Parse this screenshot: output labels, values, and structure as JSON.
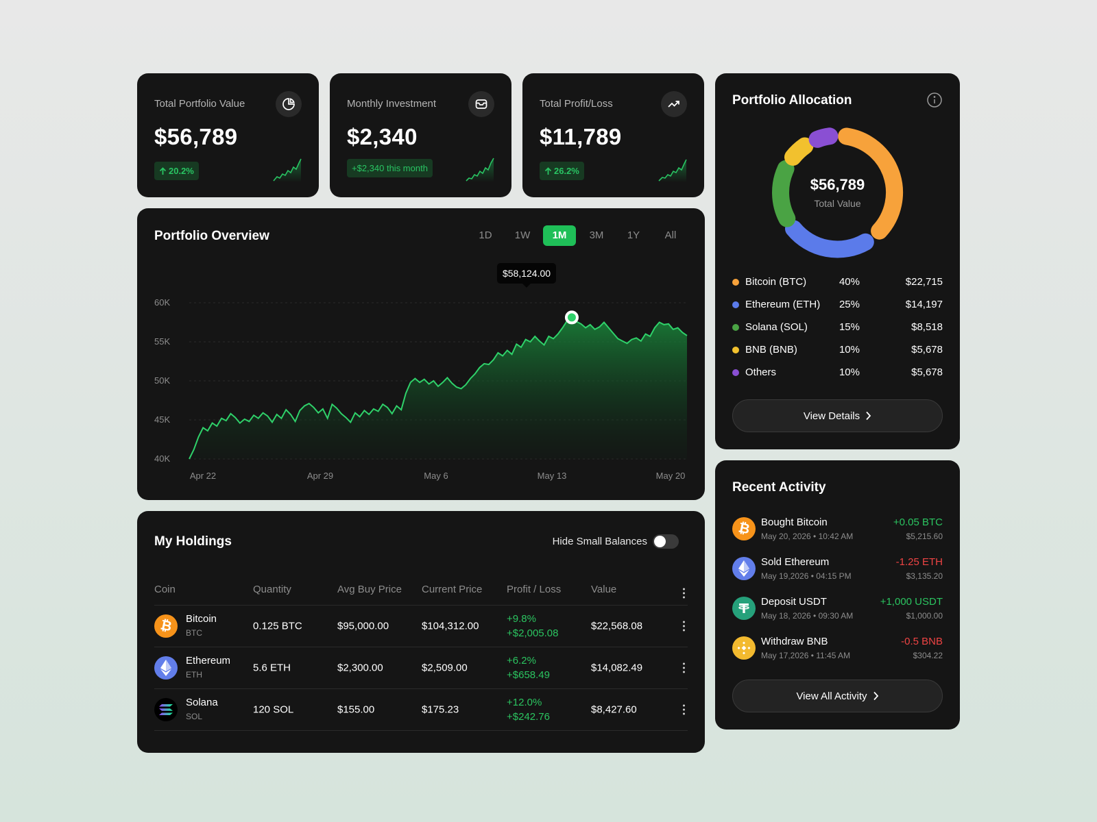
{
  "stats": [
    {
      "label": "Total Portfolio Value",
      "value": "$56,789",
      "badge": "20.2%",
      "icon": "pie-chart-icon"
    },
    {
      "label": "Monthly Investment",
      "value": "$2,340",
      "badge": "+$2,340 this month",
      "icon": "wallet-icon"
    },
    {
      "label": "Total Profit/Loss",
      "value": "$11,789",
      "badge": "26.2%",
      "icon": "trending-up-icon"
    }
  ],
  "overview": {
    "title": "Portfolio Overview",
    "ranges": [
      "1D",
      "1W",
      "1M",
      "3M",
      "1Y",
      "All"
    ],
    "active_range": "1M",
    "tooltip": "$58,124.00"
  },
  "chart_data": {
    "type": "area",
    "x_ticks": [
      "Apr 22",
      "Apr 29",
      "May 6",
      "May 13",
      "May 20"
    ],
    "y_ticks": [
      "60K",
      "55K",
      "50K",
      "45K",
      "40K"
    ],
    "ylim": [
      40000,
      60000
    ],
    "values": [
      40000,
      41200,
      42800,
      44000,
      43600,
      44600,
      44200,
      45200,
      44900,
      45800,
      45300,
      44600,
      45100,
      44800,
      45600,
      45200,
      45900,
      45500,
      44700,
      45700,
      45200,
      46300,
      45700,
      44800,
      46200,
      46800,
      47100,
      46600,
      45900,
      46400,
      45200,
      47000,
      46500,
      45800,
      45300,
      44700,
      45900,
      45400,
      46200,
      45700,
      46400,
      46100,
      47000,
      46600,
      45800,
      46800,
      46300,
      48400,
      49800,
      50300,
      49800,
      50200,
      49600,
      50000,
      49300,
      49800,
      50400,
      49700,
      49200,
      49000,
      49500,
      50300,
      50900,
      51700,
      52200,
      52100,
      52700,
      53600,
      53200,
      53900,
      53400,
      54700,
      54300,
      55300,
      55000,
      55700,
      55100,
      54600,
      55700,
      55400,
      56000,
      56800,
      57700,
      58124,
      57600,
      57300,
      56800,
      57200,
      56600,
      56900,
      57500,
      56800,
      56100,
      55400,
      55100,
      54800,
      55300,
      55500,
      55100,
      56000,
      55700,
      56800,
      57500,
      57200,
      57300,
      56600,
      56800,
      56200,
      55800
    ]
  },
  "holdings": {
    "title": "My Holdings",
    "toggle_label": "Hide Small Balances",
    "headers": [
      "Coin",
      "Quantity",
      "Avg Buy Price",
      "Current Price",
      "Profit / Loss",
      "Value"
    ],
    "rows": [
      {
        "name": "Bitcoin",
        "symbol": "BTC",
        "qty": "0.125 BTC",
        "avg": "$95,000.00",
        "current": "$104,312.00",
        "pl_pct": "+9.8%",
        "pl_usd": "+$2,005.08",
        "value": "$22,568.08",
        "color": "#f7931a"
      },
      {
        "name": "Ethereum",
        "symbol": "ETH",
        "qty": "5.6 ETH",
        "avg": "$2,300.00",
        "current": "$2,509.00",
        "pl_pct": "+6.2%",
        "pl_usd": "+$658.49",
        "value": "$14,082.49",
        "color": "#627eea"
      },
      {
        "name": "Solana",
        "symbol": "SOL",
        "qty": "120 SOL",
        "avg": "$155.00",
        "current": "$175.23",
        "pl_pct": "+12.0%",
        "pl_usd": "+$242.76",
        "value": "$8,427.60",
        "color": "#000000"
      }
    ]
  },
  "allocation": {
    "title": "Portfolio Allocation",
    "center_value": "$56,789",
    "center_label": "Total Value",
    "items": [
      {
        "name": "Bitcoin (BTC)",
        "pct": "40%",
        "value": "$22,715",
        "color": "#f7a23b"
      },
      {
        "name": "Ethereum (ETH)",
        "pct": "25%",
        "value": "$14,197",
        "color": "#5b7bea"
      },
      {
        "name": "Solana (SOL)",
        "pct": "15%",
        "value": "$8,518",
        "color": "#4aa344"
      },
      {
        "name": "BNB (BNB)",
        "pct": "10%",
        "value": "$5,678",
        "color": "#f2c12e"
      },
      {
        "name": "Others",
        "pct": "10%",
        "value": "$5,678",
        "color": "#8a4fd3"
      }
    ],
    "button": "View Details"
  },
  "activity": {
    "title": "Recent Activity",
    "items": [
      {
        "title": "Bought Bitcoin",
        "date": "May 20, 2026 • 10:42 AM",
        "amount": "+0.05 BTC",
        "usd": "$5,215.60",
        "type": "pos",
        "color": "#f7931a"
      },
      {
        "title": "Sold Ethereum",
        "date": "May 19,2026 • 04:15 PM",
        "amount": "-1.25 ETH",
        "usd": "$3,135.20",
        "type": "neg",
        "color": "#627eea"
      },
      {
        "title": "Deposit USDT",
        "date": "May 18, 2026 • 09:30 AM",
        "amount": "+1,000 USDT",
        "usd": "$1,000.00",
        "type": "pos",
        "color": "#26a17b"
      },
      {
        "title": "Withdraw BNB",
        "date": "May 17,2026 • 11:45 AM",
        "amount": "-0.5 BNB",
        "usd": "$304.22",
        "type": "neg",
        "color": "#f3ba2f"
      }
    ],
    "button": "View All Activity"
  }
}
